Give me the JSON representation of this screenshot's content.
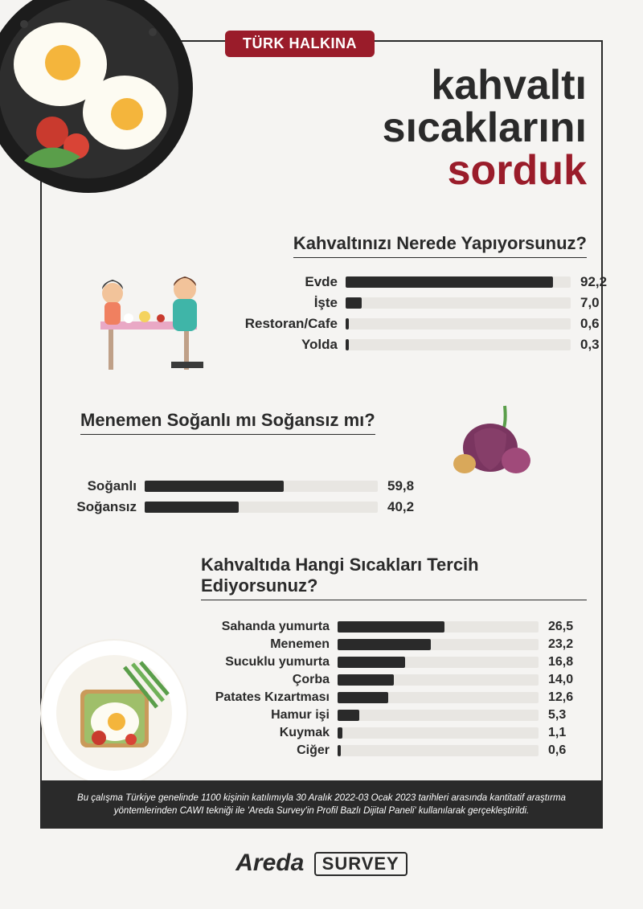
{
  "colors": {
    "accent": "#9a1c2a",
    "ink": "#2a2a2a",
    "track": "#e8e6e2",
    "bg": "#f5f4f2"
  },
  "badge": "TÜRK HALKINA",
  "title_line1": "kahvaltı",
  "title_line2": "sıcaklarını",
  "title_line3": "sorduk",
  "sec1": {
    "title": "Kahvaltınızı Nerede Yapıyorsunuz?",
    "max": 100,
    "items": [
      {
        "label": "Evde",
        "value": 92.2,
        "display": "92,2"
      },
      {
        "label": "İşte",
        "value": 7.0,
        "display": "7,0"
      },
      {
        "label": "Restoran/Cafe",
        "value": 0.6,
        "display": "0,6"
      },
      {
        "label": "Yolda",
        "value": 0.3,
        "display": "0,3"
      }
    ]
  },
  "sec2": {
    "title": "Menemen Soğanlı mı Soğansız mı?",
    "max": 100,
    "items": [
      {
        "label": "Soğanlı",
        "value": 59.8,
        "display": "59,8"
      },
      {
        "label": "Soğansız",
        "value": 40.2,
        "display": "40,2"
      }
    ]
  },
  "sec3": {
    "title": "Kahvaltıda Hangi Sıcakları Tercih Ediyorsunuz?",
    "max": 50,
    "items": [
      {
        "label": "Sahanda yumurta",
        "value": 26.5,
        "display": "26,5"
      },
      {
        "label": "Menemen",
        "value": 23.2,
        "display": "23,2"
      },
      {
        "label": "Sucuklu yumurta",
        "value": 16.8,
        "display": "16,8"
      },
      {
        "label": "Çorba",
        "value": 14.0,
        "display": "14,0"
      },
      {
        "label": "Patates Kızartması",
        "value": 12.6,
        "display": "12,6"
      },
      {
        "label": "Hamur işi",
        "value": 5.3,
        "display": "5,3"
      },
      {
        "label": "Kuymak",
        "value": 1.1,
        "display": "1,1"
      },
      {
        "label": "Ciğer",
        "value": 0.6,
        "display": "0,6"
      }
    ]
  },
  "footer": "Bu çalışma Türkiye genelinde 1100 kişinin katılımıyla 30 Aralık 2022-03 Ocak 2023 tarihleri arasında kantitatif araştırma yöntemlerinden CAWI tekniği ile 'Areda Survey'in Profil Bazlı Dijital Paneli' kullanılarak gerçekleştirildi.",
  "logo_brand": "Areda",
  "logo_sub": "SURVEY"
}
